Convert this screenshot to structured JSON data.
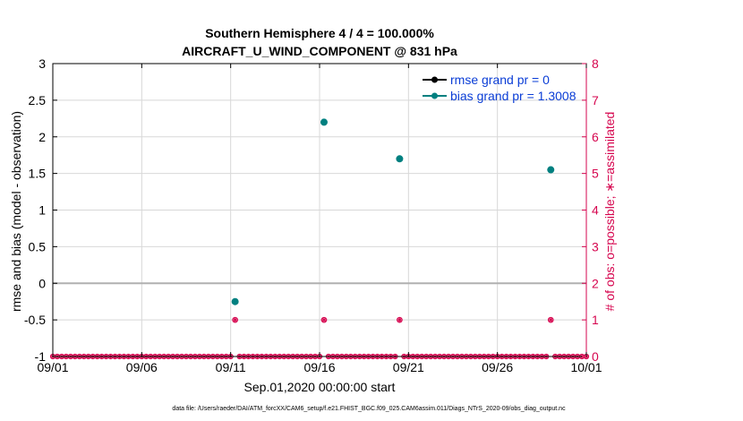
{
  "chart_data": {
    "type": "scatter",
    "title": "Southern Hemisphere 4 / 4 = 100.000%",
    "subtitle": "AIRCRAFT_U_WIND_COMPONENT @ 831 hPa",
    "xlabel": "Sep.01,2020 00:00:00 start",
    "ylabel": "rmse and bias (model - observation)",
    "y2label": "# of obs: o=possible; ∗=assimilated",
    "footer": "data file: /Users/raeder/DAI/ATM_forcXX/CAM6_setup/f.e21.FHIST_BGC.f09_025.CAM6assim.011/Diags_NTrS_2020-09/obs_diag_output.nc",
    "xlim": [
      0,
      30
    ],
    "ylim": [
      -1,
      3
    ],
    "y2lim": [
      0,
      8
    ],
    "xticks": [
      {
        "value": 0,
        "label": "09/01"
      },
      {
        "value": 5,
        "label": "09/06"
      },
      {
        "value": 10,
        "label": "09/11"
      },
      {
        "value": 15,
        "label": "09/16"
      },
      {
        "value": 20,
        "label": "09/21"
      },
      {
        "value": 25,
        "label": "09/26"
      },
      {
        "value": 30,
        "label": "10/01"
      }
    ],
    "yticks": [
      "-1",
      "-0.5",
      "0",
      "0.5",
      "1",
      "1.5",
      "2",
      "2.5",
      "3"
    ],
    "y2ticks": [
      "0",
      "1",
      "2",
      "3",
      "4",
      "5",
      "6",
      "7",
      "8"
    ],
    "grid": true,
    "legend_position": "top-right",
    "series": [
      {
        "name": "rmse grand pr = 0",
        "color": "#000000",
        "axis": "left",
        "marker": "circle",
        "x": [],
        "y": []
      },
      {
        "name": "bias grand pr = 1.3008",
        "color": "#008080",
        "axis": "left",
        "marker": "circle",
        "x": [
          10.25,
          15.25,
          19.5,
          28
        ],
        "y": [
          -0.25,
          2.2,
          1.7,
          1.55
        ]
      },
      {
        "name": "obs possible",
        "color": "#d6064f",
        "axis": "right",
        "marker": "o",
        "x": [
          10.25,
          15.25,
          19.5,
          28
        ],
        "y": [
          1,
          1,
          1,
          1
        ]
      },
      {
        "name": "obs assimilated",
        "color": "#d6064f",
        "axis": "right",
        "marker": "*",
        "x": [
          10.25,
          15.25,
          19.5,
          28
        ],
        "y": [
          1,
          1,
          1,
          1
        ]
      }
    ],
    "zero_counts_interval": 0.25,
    "colors": {
      "right_axis": "#d6064f",
      "bias": "#008080",
      "legend_text": "#0a3dd6",
      "grid": "#d8d8d8",
      "zero_line": "#b0b0b0"
    }
  }
}
